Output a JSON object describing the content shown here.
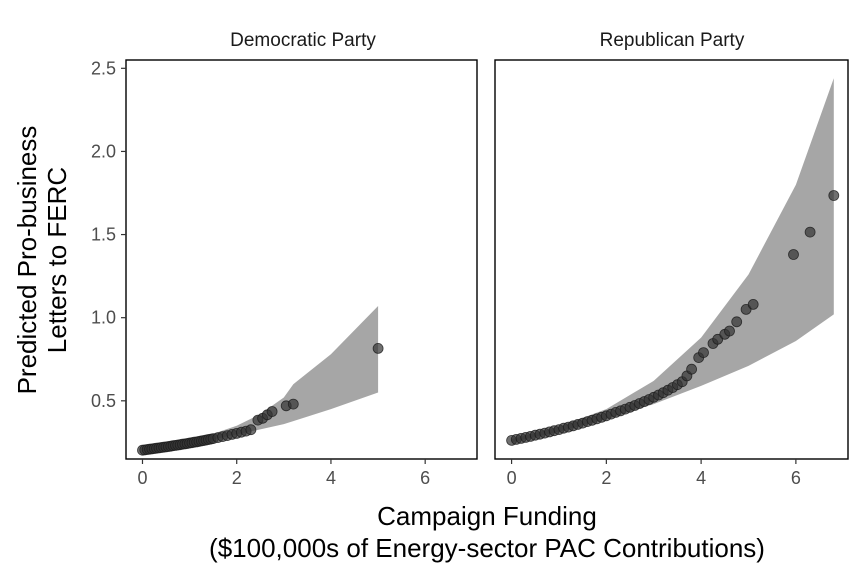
{
  "chart_data": {
    "type": "scatter",
    "xlabel": [
      "Campaign Funding",
      "($100,000s of Energy-sector PAC Contributions)"
    ],
    "ylabel": [
      "Predicted Pro-business",
      "Letters to FERC"
    ],
    "x_range": [
      -0.35,
      7.1
    ],
    "y_range": [
      0.15,
      2.55
    ],
    "x_ticks": [
      0,
      2,
      4,
      6
    ],
    "y_ticks": [
      0.5,
      1.0,
      1.5,
      2.0,
      2.5
    ],
    "x_tick_labels": [
      "0",
      "2",
      "4",
      "6"
    ],
    "y_tick_labels": [
      "0.5",
      "1.0",
      "1.5",
      "2.0",
      "2.5"
    ],
    "grid": false,
    "legend": "none",
    "colors": {
      "points": "#333333",
      "band": "#a6a6a6",
      "axis": "#000000"
    },
    "facets": [
      {
        "title": "Democratic Party",
        "band": {
          "x": [
            0.0,
            0.5,
            1.0,
            1.5,
            2.0,
            2.5,
            3.0,
            3.2,
            4.0,
            5.0
          ],
          "lower": [
            0.198,
            0.218,
            0.242,
            0.268,
            0.298,
            0.328,
            0.36,
            0.378,
            0.45,
            0.55
          ],
          "upper": [
            0.212,
            0.236,
            0.265,
            0.302,
            0.35,
            0.42,
            0.52,
            0.6,
            0.78,
            1.07
          ]
        },
        "points": {
          "x": [
            0.0,
            0.05,
            0.1,
            0.15,
            0.2,
            0.25,
            0.3,
            0.35,
            0.4,
            0.45,
            0.5,
            0.55,
            0.6,
            0.65,
            0.7,
            0.75,
            0.8,
            0.85,
            0.9,
            0.95,
            1.0,
            1.05,
            1.1,
            1.15,
            1.2,
            1.25,
            1.3,
            1.35,
            1.4,
            1.45,
            1.5,
            1.6,
            1.7,
            1.8,
            1.9,
            2.0,
            2.1,
            2.2,
            2.3,
            2.45,
            2.55,
            2.65,
            2.75,
            3.05,
            3.2,
            5.0
          ],
          "y": [
            0.203,
            0.205,
            0.207,
            0.209,
            0.211,
            0.213,
            0.215,
            0.217,
            0.219,
            0.221,
            0.223,
            0.225,
            0.227,
            0.23,
            0.232,
            0.234,
            0.236,
            0.239,
            0.241,
            0.243,
            0.246,
            0.248,
            0.251,
            0.253,
            0.256,
            0.259,
            0.261,
            0.264,
            0.267,
            0.27,
            0.273,
            0.279,
            0.285,
            0.291,
            0.298,
            0.304,
            0.311,
            0.318,
            0.326,
            0.384,
            0.395,
            0.416,
            0.436,
            0.47,
            0.48,
            0.815
          ]
        }
      },
      {
        "title": "Republican Party",
        "band": {
          "x": [
            0.0,
            1.0,
            2.0,
            3.0,
            4.0,
            5.0,
            6.0,
            6.8
          ],
          "lower": [
            0.25,
            0.315,
            0.39,
            0.48,
            0.59,
            0.71,
            0.86,
            1.02
          ],
          "upper": [
            0.27,
            0.345,
            0.45,
            0.62,
            0.88,
            1.26,
            1.8,
            2.44
          ]
        },
        "points": {
          "x": [
            0.0,
            0.1,
            0.2,
            0.3,
            0.4,
            0.5,
            0.6,
            0.7,
            0.8,
            0.9,
            1.0,
            1.1,
            1.2,
            1.3,
            1.4,
            1.5,
            1.6,
            1.7,
            1.8,
            1.9,
            2.0,
            2.1,
            2.2,
            2.3,
            2.4,
            2.5,
            2.6,
            2.7,
            2.8,
            2.9,
            3.0,
            3.1,
            3.2,
            3.3,
            3.4,
            3.5,
            3.6,
            3.7,
            3.8,
            3.95,
            4.05,
            4.25,
            4.35,
            4.5,
            4.6,
            4.75,
            4.95,
            5.1,
            5.95,
            6.3,
            6.8
          ],
          "y": [
            0.262,
            0.268,
            0.274,
            0.28,
            0.286,
            0.293,
            0.299,
            0.306,
            0.313,
            0.32,
            0.327,
            0.335,
            0.342,
            0.35,
            0.358,
            0.366,
            0.375,
            0.383,
            0.392,
            0.401,
            0.41,
            0.42,
            0.43,
            0.44,
            0.45,
            0.461,
            0.472,
            0.484,
            0.496,
            0.508,
            0.521,
            0.535,
            0.549,
            0.564,
            0.58,
            0.597,
            0.615,
            0.65,
            0.69,
            0.76,
            0.79,
            0.845,
            0.87,
            0.9,
            0.92,
            0.975,
            1.05,
            1.08,
            1.38,
            1.515,
            1.735
          ]
        }
      }
    ]
  }
}
